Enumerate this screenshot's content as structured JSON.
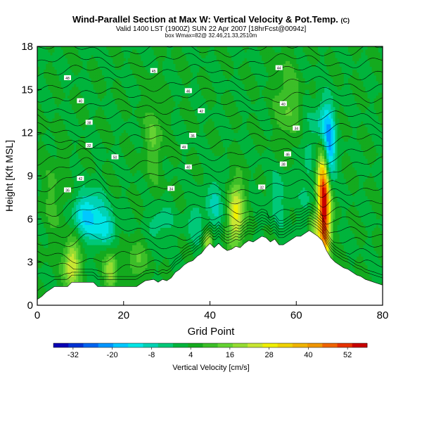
{
  "chart_data": {
    "type": "heatmap",
    "title": "Wind-Parallel Section at Max W: Vertical Velocity & Pot.Temp.",
    "title_mark": "(C)",
    "subtitle": "Valid 1400 LST (1900Z) SUN 22 Apr 2007 [18hrFcst@0094z]",
    "subtitle2": "box Wmax=82@ 32.46,21.33,2510m",
    "xlabel": "Grid Point",
    "ylabel": "Height [Kft MSL]",
    "xlim": [
      0,
      80
    ],
    "ylim": [
      0,
      18
    ],
    "xticks": [
      0,
      20,
      40,
      60,
      80
    ],
    "yticks": [
      0,
      3,
      6,
      9,
      12,
      15,
      18
    ],
    "colorbar_label": "Vertical Velocity [cm/s]",
    "colorbar_ticks": [
      -32,
      -20,
      -8,
      4,
      16,
      28,
      40,
      52
    ],
    "colorbar_range": [
      -38,
      58
    ],
    "colorbar_colors": [
      "#0a00b4",
      "#0032d2",
      "#0064f0",
      "#0096ff",
      "#00c8ff",
      "#00e6e6",
      "#00d2b4",
      "#00c878",
      "#00b43c",
      "#14aa1e",
      "#3cbe28",
      "#64d232",
      "#96dc32",
      "#c8e632",
      "#f0f000",
      "#f0d200",
      "#f0b400",
      "#f09600",
      "#f06400",
      "#e63200",
      "#c80000"
    ],
    "theta_labels": [
      "48",
      "45",
      "44",
      "40",
      "46",
      "42",
      "40",
      "38",
      "36",
      "34",
      "32",
      "50",
      "49",
      "46",
      "42",
      "40",
      "38",
      "36",
      "34",
      "32"
    ],
    "terrain": [
      [
        0,
        0.4
      ],
      [
        1,
        0.6
      ],
      [
        2,
        0.9
      ],
      [
        3,
        1.1
      ],
      [
        4,
        1.3
      ],
      [
        7,
        1.3
      ],
      [
        8,
        1.6
      ],
      [
        13,
        1.6
      ],
      [
        14,
        1.3
      ],
      [
        23,
        1.3
      ],
      [
        24,
        1.5
      ],
      [
        25,
        1.7
      ],
      [
        27,
        1.8
      ],
      [
        28,
        1.6
      ],
      [
        29,
        1.8
      ],
      [
        30,
        1.7
      ],
      [
        31,
        1.9
      ],
      [
        32,
        2.3
      ],
      [
        33,
        2.5
      ],
      [
        34,
        2.8
      ],
      [
        35,
        3.0
      ],
      [
        36,
        3.1
      ],
      [
        37,
        3.4
      ],
      [
        38,
        3.6
      ],
      [
        39,
        4.0
      ],
      [
        40,
        4.3
      ],
      [
        41,
        4.0
      ],
      [
        42,
        4.3
      ],
      [
        43,
        4.0
      ],
      [
        44,
        3.8
      ],
      [
        45,
        3.9
      ],
      [
        46,
        4.1
      ],
      [
        47,
        4.0
      ],
      [
        48,
        4.3
      ],
      [
        49,
        4.5
      ],
      [
        50,
        4.4
      ],
      [
        51,
        4.6
      ],
      [
        52,
        4.8
      ],
      [
        53,
        4.7
      ],
      [
        54,
        4.4
      ],
      [
        55,
        4.6
      ],
      [
        56,
        4.2
      ],
      [
        57,
        4.2
      ],
      [
        58,
        4.4
      ],
      [
        59,
        4.6
      ],
      [
        60,
        4.8
      ],
      [
        61,
        4.8
      ],
      [
        62,
        5.0
      ],
      [
        63,
        5.2
      ],
      [
        64,
        5.0
      ],
      [
        65,
        4.8
      ],
      [
        66,
        4.5
      ],
      [
        67,
        3.8
      ],
      [
        68,
        3.3
      ],
      [
        69,
        3.0
      ],
      [
        70,
        2.8
      ],
      [
        71,
        2.6
      ],
      [
        72,
        2.5
      ],
      [
        73,
        2.3
      ],
      [
        74,
        2.1
      ],
      [
        75,
        2.0
      ],
      [
        76,
        1.8
      ],
      [
        77,
        1.7
      ],
      [
        78,
        1.6
      ],
      [
        79,
        1.5
      ],
      [
        80,
        1.4
      ]
    ],
    "features": [
      {
        "x": 66.5,
        "y": 6.5,
        "sx": 1.0,
        "sy": 2.6,
        "v": 55
      },
      {
        "x": 66.0,
        "y": 9.0,
        "sx": 1.0,
        "sy": 1.2,
        "v": 15
      },
      {
        "x": 67.5,
        "y": 10.5,
        "sx": 1.0,
        "sy": 1.6,
        "v": -30
      },
      {
        "x": 66.5,
        "y": 12.8,
        "sx": 1.5,
        "sy": 1.2,
        "v": -14
      },
      {
        "x": 12.0,
        "y": 6.3,
        "sx": 2.5,
        "sy": 1.1,
        "v": -20
      },
      {
        "x": 16.0,
        "y": 5.3,
        "sx": 1.8,
        "sy": 0.8,
        "v": -12
      },
      {
        "x": 8.0,
        "y": 2.8,
        "sx": 1.3,
        "sy": 1.2,
        "v": 24
      },
      {
        "x": 17.0,
        "y": 2.5,
        "sx": 1.0,
        "sy": 1.0,
        "v": 18
      },
      {
        "x": 46.0,
        "y": 6.3,
        "sx": 1.3,
        "sy": 1.6,
        "v": 26
      },
      {
        "x": 39.5,
        "y": 4.4,
        "sx": 0.8,
        "sy": 0.5,
        "v": 20
      },
      {
        "x": 41.5,
        "y": 7.2,
        "sx": 1.4,
        "sy": 1.3,
        "v": -10
      },
      {
        "x": 37.0,
        "y": 5.8,
        "sx": 1.5,
        "sy": 1.1,
        "v": -8
      },
      {
        "x": 28.5,
        "y": 5.8,
        "sx": 2.0,
        "sy": 0.8,
        "v": -8
      },
      {
        "x": 56.0,
        "y": 7.5,
        "sx": 2.0,
        "sy": 1.5,
        "v": -6
      },
      {
        "x": 62.5,
        "y": 9.0,
        "sx": 1.2,
        "sy": 3.0,
        "v": -6
      },
      {
        "x": 27.0,
        "y": 11.5,
        "sx": 1.5,
        "sy": 2.0,
        "v": 10
      },
      {
        "x": 58.0,
        "y": 14.0,
        "sx": 2.0,
        "sy": 2.0,
        "v": 10
      },
      {
        "x": 64.0,
        "y": 5.5,
        "sx": 1.0,
        "sy": 0.8,
        "v": 12
      },
      {
        "x": 4.0,
        "y": 7.5,
        "sx": 2.0,
        "sy": 2.0,
        "v": 6
      },
      {
        "x": 23.0,
        "y": 3.0,
        "sx": 1.5,
        "sy": 1.0,
        "v": 10
      }
    ]
  }
}
